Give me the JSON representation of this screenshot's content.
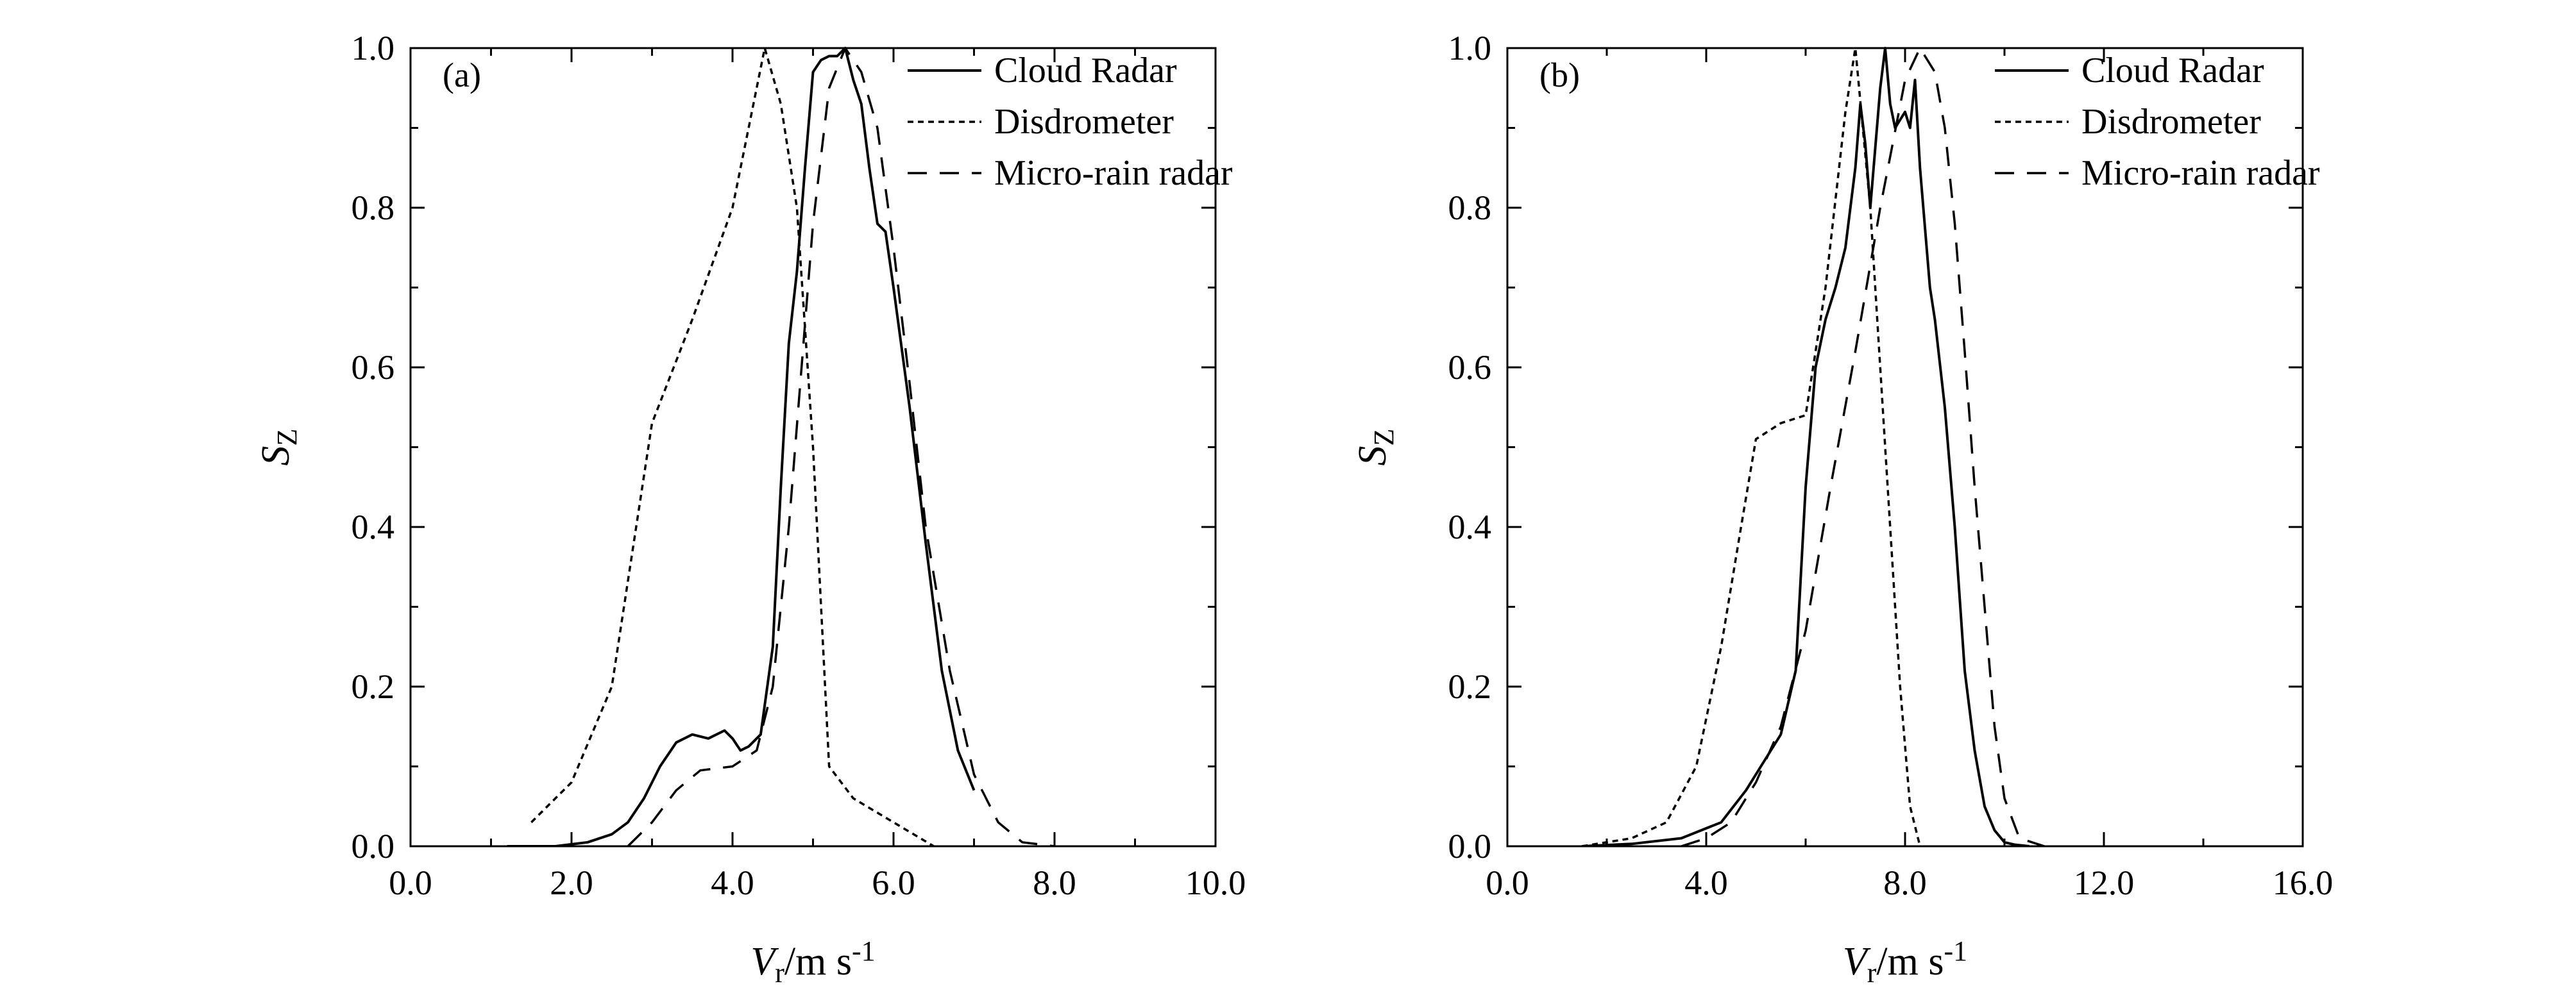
{
  "chart_data": [
    {
      "type": "line",
      "panel_label": "(a)",
      "xlabel": {
        "main": "V",
        "sub": "r",
        "unit": "/m s",
        "sup": "-1"
      },
      "ylabel": {
        "main": "S",
        "sub": "Z"
      },
      "xlim": [
        0,
        10
      ],
      "ylim": [
        0,
        1
      ],
      "x_ticks": [
        "0.0",
        "2.0",
        "4.0",
        "6.0",
        "8.0",
        "10.0"
      ],
      "y_ticks": [
        "0.0",
        "0.2",
        "0.4",
        "0.6",
        "0.8",
        "1.0"
      ],
      "legend_position": "top-right",
      "series": [
        {
          "name": "Cloud Radar",
          "style": "solid",
          "x": [
            1.2,
            1.8,
            2.2,
            2.5,
            2.7,
            2.9,
            3.1,
            3.3,
            3.5,
            3.7,
            3.9,
            4.0,
            4.1,
            4.2,
            4.35,
            4.5,
            4.6,
            4.7,
            4.8,
            4.9,
            5.0,
            5.1,
            5.2,
            5.3,
            5.4,
            5.5,
            5.6,
            5.7,
            5.8,
            5.9,
            6.0,
            6.2,
            6.4,
            6.6,
            6.8,
            7.0
          ],
          "y": [
            0.0,
            0.0,
            0.005,
            0.015,
            0.03,
            0.06,
            0.1,
            0.13,
            0.14,
            0.135,
            0.145,
            0.135,
            0.12,
            0.125,
            0.14,
            0.25,
            0.45,
            0.63,
            0.72,
            0.85,
            0.97,
            0.985,
            0.99,
            0.99,
            1.0,
            0.96,
            0.93,
            0.85,
            0.78,
            0.77,
            0.7,
            0.55,
            0.38,
            0.22,
            0.12,
            0.07
          ]
        },
        {
          "name": "Disdrometer",
          "style": "dotted",
          "x": [
            1.5,
            2.0,
            2.5,
            3.0,
            3.5,
            4.0,
            4.4,
            4.6,
            4.8,
            5.0,
            5.2,
            5.5,
            6.0,
            6.5
          ],
          "y": [
            0.03,
            0.08,
            0.2,
            0.53,
            0.66,
            0.8,
            1.0,
            0.93,
            0.8,
            0.5,
            0.1,
            0.06,
            0.03,
            0.0
          ]
        },
        {
          "name": "Micro-rain radar",
          "style": "dashed",
          "x": [
            2.7,
            3.0,
            3.3,
            3.6,
            4.0,
            4.3,
            4.5,
            4.7,
            5.0,
            5.2,
            5.4,
            5.6,
            5.8,
            6.0,
            6.2,
            6.4,
            6.7,
            7.0,
            7.3,
            7.6,
            8.0
          ],
          "y": [
            0.0,
            0.03,
            0.07,
            0.095,
            0.1,
            0.12,
            0.2,
            0.4,
            0.78,
            0.95,
            1.0,
            0.97,
            0.9,
            0.75,
            0.58,
            0.4,
            0.22,
            0.09,
            0.03,
            0.005,
            0.0
          ]
        }
      ]
    },
    {
      "type": "line",
      "panel_label": "(b)",
      "xlabel": {
        "main": "V",
        "sub": "r",
        "unit": "/m s",
        "sup": "-1"
      },
      "ylabel": {
        "main": "S",
        "sub": "Z"
      },
      "xlim": [
        0,
        16
      ],
      "ylim": [
        0,
        1
      ],
      "x_ticks": [
        "0.0",
        "4.0",
        "8.0",
        "12.0",
        "16.0"
      ],
      "y_ticks": [
        "0.0",
        "0.2",
        "0.4",
        "0.6",
        "0.8",
        "1.0"
      ],
      "legend_position": "top-right",
      "series": [
        {
          "name": "Cloud Radar",
          "style": "solid",
          "x": [
            1.5,
            2.5,
            3.5,
            4.3,
            4.8,
            5.2,
            5.5,
            5.8,
            6.0,
            6.2,
            6.4,
            6.6,
            6.8,
            7.0,
            7.1,
            7.2,
            7.3,
            7.5,
            7.6,
            7.7,
            7.8,
            8.0,
            8.1,
            8.2,
            8.3,
            8.5,
            8.6,
            8.8,
            9.0,
            9.2,
            9.4,
            9.6,
            9.8,
            10.0,
            10.2,
            10.5
          ],
          "y": [
            0.0,
            0.003,
            0.01,
            0.03,
            0.07,
            0.11,
            0.14,
            0.22,
            0.45,
            0.6,
            0.66,
            0.7,
            0.75,
            0.85,
            0.93,
            0.88,
            0.8,
            0.95,
            1.0,
            0.93,
            0.9,
            0.92,
            0.9,
            0.96,
            0.85,
            0.7,
            0.66,
            0.55,
            0.4,
            0.22,
            0.12,
            0.05,
            0.02,
            0.005,
            0.002,
            0.0
          ]
        },
        {
          "name": "Disdrometer",
          "style": "dotted",
          "x": [
            1.5,
            2.5,
            3.2,
            3.8,
            4.3,
            4.7,
            5.0,
            5.5,
            6.0,
            6.4,
            6.8,
            7.0,
            7.3,
            7.6,
            7.9,
            8.1,
            8.3
          ],
          "y": [
            0.0,
            0.01,
            0.03,
            0.1,
            0.25,
            0.4,
            0.51,
            0.53,
            0.54,
            0.7,
            0.92,
            1.0,
            0.8,
            0.5,
            0.2,
            0.05,
            0.0
          ]
        },
        {
          "name": "Micro-rain radar",
          "style": "dashed",
          "x": [
            3.5,
            4.0,
            4.5,
            5.0,
            5.5,
            6.0,
            6.5,
            7.0,
            7.5,
            8.0,
            8.3,
            8.6,
            8.8,
            9.0,
            9.2,
            9.4,
            9.6,
            9.8,
            10.0,
            10.3,
            10.8
          ],
          "y": [
            0.0,
            0.01,
            0.03,
            0.08,
            0.15,
            0.27,
            0.45,
            0.62,
            0.8,
            0.96,
            1.0,
            0.97,
            0.9,
            0.78,
            0.62,
            0.45,
            0.3,
            0.15,
            0.06,
            0.01,
            0.0
          ]
        }
      ]
    }
  ]
}
